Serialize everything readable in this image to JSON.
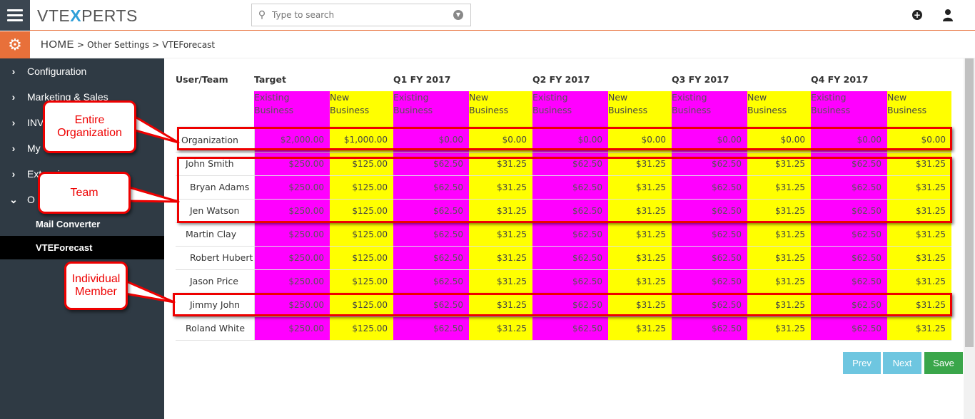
{
  "header": {
    "logo_pre": "VTE",
    "logo_x": "X",
    "logo_post": "PERTS",
    "search_placeholder": "Type to search"
  },
  "breadcrumb": {
    "home": "HOME",
    "sep1": ">",
    "item1": "Other Settings",
    "sep2": ">",
    "item2": "VTEForecast"
  },
  "sidebar": {
    "items": [
      {
        "label": "Configuration",
        "chev": "›"
      },
      {
        "label": "Marketing & Sales",
        "chev": "›"
      },
      {
        "label": "INV",
        "chev": "›"
      },
      {
        "label": "My",
        "chev": "›"
      },
      {
        "label": "Extensions",
        "chev": "›"
      },
      {
        "label": "O",
        "chev": "⌄"
      }
    ],
    "subitems": [
      {
        "label": "Mail Converter"
      },
      {
        "label": "VTEForecast"
      }
    ]
  },
  "table": {
    "col_user": "User/Team",
    "col_target": "Target",
    "quarters": [
      "Q1 FY 2017",
      "Q2 FY 2017",
      "Q3 FY 2017",
      "Q4 FY 2017"
    ],
    "sub_existing_1": "Existing",
    "sub_existing_2": "Business",
    "sub_new_1": "New",
    "sub_new_2": "Business",
    "rows": [
      {
        "name": "Organization",
        "vals": [
          "$2,000.00",
          "$1,000.00",
          "$0.00",
          "$0.00",
          "$0.00",
          "$0.00",
          "$0.00",
          "$0.00",
          "$0.00",
          "$0.00"
        ]
      },
      {
        "name": "John Smith",
        "vals": [
          "$250.00",
          "$125.00",
          "$62.50",
          "$31.25",
          "$62.50",
          "$31.25",
          "$62.50",
          "$31.25",
          "$62.50",
          "$31.25"
        ]
      },
      {
        "name": "Bryan Adams",
        "vals": [
          "$250.00",
          "$125.00",
          "$62.50",
          "$31.25",
          "$62.50",
          "$31.25",
          "$62.50",
          "$31.25",
          "$62.50",
          "$31.25"
        ]
      },
      {
        "name": "Jen Watson",
        "vals": [
          "$250.00",
          "$125.00",
          "$62.50",
          "$31.25",
          "$62.50",
          "$31.25",
          "$62.50",
          "$31.25",
          "$62.50",
          "$31.25"
        ]
      },
      {
        "name": "Martin Clay",
        "vals": [
          "$250.00",
          "$125.00",
          "$62.50",
          "$31.25",
          "$62.50",
          "$31.25",
          "$62.50",
          "$31.25",
          "$62.50",
          "$31.25"
        ]
      },
      {
        "name": "Robert Hubert",
        "vals": [
          "$250.00",
          "$125.00",
          "$62.50",
          "$31.25",
          "$62.50",
          "$31.25",
          "$62.50",
          "$31.25",
          "$62.50",
          "$31.25"
        ]
      },
      {
        "name": "Jason Price",
        "vals": [
          "$250.00",
          "$125.00",
          "$62.50",
          "$31.25",
          "$62.50",
          "$31.25",
          "$62.50",
          "$31.25",
          "$62.50",
          "$31.25"
        ]
      },
      {
        "name": "Jimmy John",
        "vals": [
          "$250.00",
          "$125.00",
          "$62.50",
          "$31.25",
          "$62.50",
          "$31.25",
          "$62.50",
          "$31.25",
          "$62.50",
          "$31.25"
        ]
      },
      {
        "name": "Roland White",
        "vals": [
          "$250.00",
          "$125.00",
          "$62.50",
          "$31.25",
          "$62.50",
          "$31.25",
          "$62.50",
          "$31.25",
          "$62.50",
          "$31.25"
        ]
      }
    ]
  },
  "annotations": {
    "org_1": "Entire",
    "org_2": "Organization",
    "team": "Team",
    "member_1": "Individual",
    "member_2": "Member"
  },
  "buttons": {
    "prev": "Prev",
    "next": "Next",
    "save": "Save"
  },
  "colors": {
    "existing": "#ff00ff",
    "new": "#ffff00",
    "accent": "#e8703a",
    "annotation": "#ee0000"
  }
}
